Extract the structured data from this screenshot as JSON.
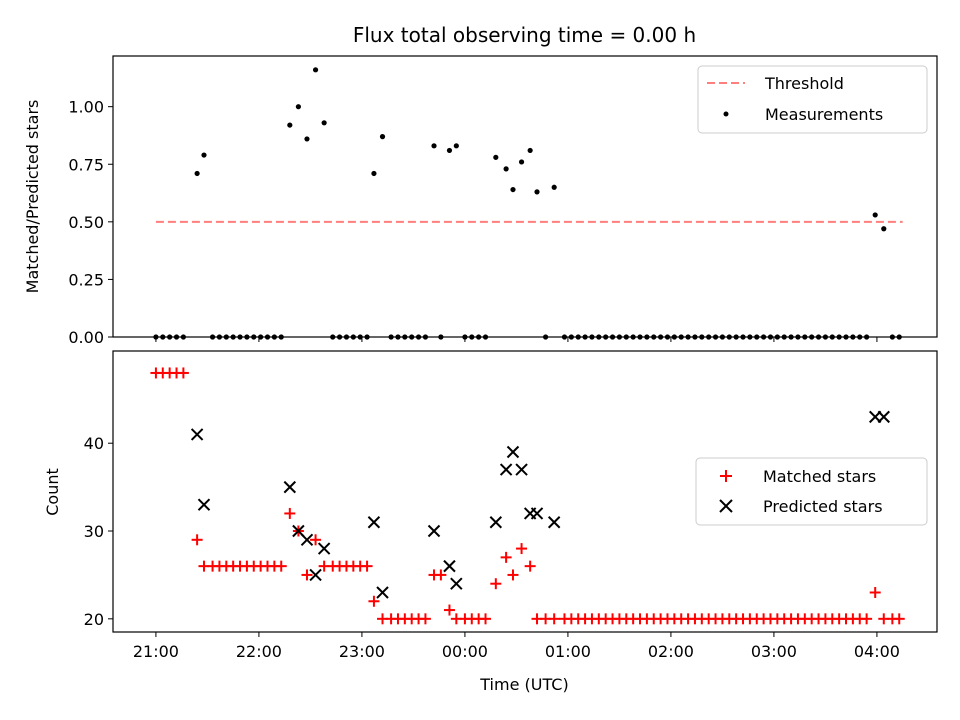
{
  "chart_data": {
    "title": "Flux total observing time = 0.00 h",
    "type": "scatter",
    "xlabel": "Time (UTC)",
    "x_ticks": [
      "21:00",
      "22:00",
      "23:00",
      "00:00",
      "01:00",
      "02:00",
      "03:00",
      "04:00"
    ],
    "panels": [
      {
        "ylabel": "Matched/Predicted stars",
        "ylim": [
          0,
          1.22
        ],
        "y_ticks": [
          "0.00",
          "0.25",
          "0.50",
          "0.75",
          "1.00"
        ],
        "legend_position": "upper right",
        "threshold": {
          "name": "Threshold",
          "value": 0.5,
          "x_range": [
            "21:00",
            "04:15"
          ],
          "color": "#ff7f7f",
          "style": "dashed"
        },
        "series": [
          {
            "name": "Measurements",
            "marker": "dot",
            "color": "#000000",
            "points": [
              [
                "21:00",
                0
              ],
              [
                "21:04",
                0
              ],
              [
                "21:08",
                0
              ],
              [
                "21:12",
                0
              ],
              [
                "21:16",
                0
              ],
              [
                "21:24",
                0.71
              ],
              [
                "21:28",
                0.79
              ],
              [
                "21:33",
                0
              ],
              [
                "21:37",
                0
              ],
              [
                "21:41",
                0
              ],
              [
                "21:45",
                0
              ],
              [
                "21:49",
                0
              ],
              [
                "21:53",
                0
              ],
              [
                "21:57",
                0
              ],
              [
                "22:01",
                0
              ],
              [
                "22:05",
                0
              ],
              [
                "22:09",
                0
              ],
              [
                "22:13",
                0
              ],
              [
                "22:18",
                0.92
              ],
              [
                "22:23",
                1.0
              ],
              [
                "22:28",
                0.86
              ],
              [
                "22:33",
                1.16
              ],
              [
                "22:38",
                0.93
              ],
              [
                "22:43",
                0
              ],
              [
                "22:47",
                0
              ],
              [
                "22:51",
                0
              ],
              [
                "22:55",
                0
              ],
              [
                "22:59",
                0
              ],
              [
                "23:03",
                0
              ],
              [
                "23:07",
                0.71
              ],
              [
                "23:12",
                0.87
              ],
              [
                "23:17",
                0
              ],
              [
                "23:21",
                0
              ],
              [
                "23:25",
                0
              ],
              [
                "23:29",
                0
              ],
              [
                "23:33",
                0
              ],
              [
                "23:37",
                0
              ],
              [
                "23:42",
                0.83
              ],
              [
                "23:46",
                0
              ],
              [
                "23:51",
                0.81
              ],
              [
                "23:55",
                0.83
              ],
              [
                "00:00",
                0
              ],
              [
                "00:04",
                0
              ],
              [
                "00:08",
                0
              ],
              [
                "00:12",
                0
              ],
              [
                "00:18",
                0.78
              ],
              [
                "00:24",
                0.73
              ],
              [
                "00:28",
                0.64
              ],
              [
                "00:33",
                0.76
              ],
              [
                "00:38",
                0.81
              ],
              [
                "00:42",
                0.63
              ],
              [
                "00:47",
                0
              ],
              [
                "00:52",
                0.65
              ],
              [
                "00:58",
                0
              ],
              [
                "01:02",
                0
              ],
              [
                "01:06",
                0
              ],
              [
                "01:10",
                0
              ],
              [
                "01:14",
                0
              ],
              [
                "01:18",
                0
              ],
              [
                "01:22",
                0
              ],
              [
                "01:26",
                0
              ],
              [
                "01:30",
                0
              ],
              [
                "01:34",
                0
              ],
              [
                "01:38",
                0
              ],
              [
                "01:42",
                0
              ],
              [
                "01:46",
                0
              ],
              [
                "01:50",
                0
              ],
              [
                "01:54",
                0
              ],
              [
                "01:58",
                0
              ],
              [
                "02:02",
                0
              ],
              [
                "02:06",
                0
              ],
              [
                "02:10",
                0
              ],
              [
                "02:14",
                0
              ],
              [
                "02:18",
                0
              ],
              [
                "02:22",
                0
              ],
              [
                "02:26",
                0
              ],
              [
                "02:30",
                0
              ],
              [
                "02:34",
                0
              ],
              [
                "02:38",
                0
              ],
              [
                "02:42",
                0
              ],
              [
                "02:46",
                0
              ],
              [
                "02:50",
                0
              ],
              [
                "02:54",
                0
              ],
              [
                "02:58",
                0
              ],
              [
                "03:02",
                0
              ],
              [
                "03:06",
                0
              ],
              [
                "03:10",
                0
              ],
              [
                "03:14",
                0
              ],
              [
                "03:18",
                0
              ],
              [
                "03:22",
                0
              ],
              [
                "03:26",
                0
              ],
              [
                "03:30",
                0
              ],
              [
                "03:34",
                0
              ],
              [
                "03:38",
                0
              ],
              [
                "03:42",
                0
              ],
              [
                "03:46",
                0
              ],
              [
                "03:50",
                0
              ],
              [
                "03:54",
                0
              ],
              [
                "03:59",
                0.53
              ],
              [
                "04:04",
                0.47
              ],
              [
                "04:09",
                0
              ],
              [
                "04:13",
                0
              ]
            ]
          }
        ]
      },
      {
        "ylabel": "Count",
        "ylim": [
          18.5,
          50.5
        ],
        "y_ticks": [
          "20",
          "30",
          "40"
        ],
        "legend_position": "center right",
        "series": [
          {
            "name": "Matched stars",
            "marker": "plus",
            "color": "#ff0000",
            "points": [
              [
                "21:00",
                48
              ],
              [
                "21:04",
                48
              ],
              [
                "21:08",
                48
              ],
              [
                "21:12",
                48
              ],
              [
                "21:16",
                48
              ],
              [
                "21:24",
                29
              ],
              [
                "21:28",
                26
              ],
              [
                "21:33",
                26
              ],
              [
                "21:37",
                26
              ],
              [
                "21:41",
                26
              ],
              [
                "21:45",
                26
              ],
              [
                "21:49",
                26
              ],
              [
                "21:53",
                26
              ],
              [
                "21:57",
                26
              ],
              [
                "22:01",
                26
              ],
              [
                "22:05",
                26
              ],
              [
                "22:09",
                26
              ],
              [
                "22:13",
                26
              ],
              [
                "22:18",
                32
              ],
              [
                "22:23",
                30
              ],
              [
                "22:28",
                25
              ],
              [
                "22:33",
                29
              ],
              [
                "22:38",
                26
              ],
              [
                "22:43",
                26
              ],
              [
                "22:47",
                26
              ],
              [
                "22:51",
                26
              ],
              [
                "22:55",
                26
              ],
              [
                "22:59",
                26
              ],
              [
                "23:03",
                26
              ],
              [
                "23:07",
                22
              ],
              [
                "23:12",
                20
              ],
              [
                "23:17",
                20
              ],
              [
                "23:21",
                20
              ],
              [
                "23:25",
                20
              ],
              [
                "23:29",
                20
              ],
              [
                "23:33",
                20
              ],
              [
                "23:37",
                20
              ],
              [
                "23:42",
                25
              ],
              [
                "23:46",
                25
              ],
              [
                "23:51",
                21
              ],
              [
                "23:55",
                20
              ],
              [
                "00:00",
                20
              ],
              [
                "00:04",
                20
              ],
              [
                "00:08",
                20
              ],
              [
                "00:12",
                20
              ],
              [
                "00:18",
                24
              ],
              [
                "00:24",
                27
              ],
              [
                "00:28",
                25
              ],
              [
                "00:33",
                28
              ],
              [
                "00:38",
                26
              ],
              [
                "00:42",
                20
              ],
              [
                "00:47",
                20
              ],
              [
                "00:52",
                20
              ],
              [
                "00:58",
                20
              ],
              [
                "01:02",
                20
              ],
              [
                "01:06",
                20
              ],
              [
                "01:10",
                20
              ],
              [
                "01:14",
                20
              ],
              [
                "01:18",
                20
              ],
              [
                "01:22",
                20
              ],
              [
                "01:26",
                20
              ],
              [
                "01:30",
                20
              ],
              [
                "01:34",
                20
              ],
              [
                "01:38",
                20
              ],
              [
                "01:42",
                20
              ],
              [
                "01:46",
                20
              ],
              [
                "01:50",
                20
              ],
              [
                "01:54",
                20
              ],
              [
                "01:58",
                20
              ],
              [
                "02:02",
                20
              ],
              [
                "02:06",
                20
              ],
              [
                "02:10",
                20
              ],
              [
                "02:14",
                20
              ],
              [
                "02:18",
                20
              ],
              [
                "02:22",
                20
              ],
              [
                "02:26",
                20
              ],
              [
                "02:30",
                20
              ],
              [
                "02:34",
                20
              ],
              [
                "02:38",
                20
              ],
              [
                "02:42",
                20
              ],
              [
                "02:46",
                20
              ],
              [
                "02:50",
                20
              ],
              [
                "02:54",
                20
              ],
              [
                "02:58",
                20
              ],
              [
                "03:02",
                20
              ],
              [
                "03:06",
                20
              ],
              [
                "03:10",
                20
              ],
              [
                "03:14",
                20
              ],
              [
                "03:18",
                20
              ],
              [
                "03:22",
                20
              ],
              [
                "03:26",
                20
              ],
              [
                "03:30",
                20
              ],
              [
                "03:34",
                20
              ],
              [
                "03:38",
                20
              ],
              [
                "03:42",
                20
              ],
              [
                "03:46",
                20
              ],
              [
                "03:50",
                20
              ],
              [
                "03:54",
                20
              ],
              [
                "03:59",
                23
              ],
              [
                "04:04",
                20
              ],
              [
                "04:09",
                20
              ],
              [
                "04:13",
                20
              ]
            ]
          },
          {
            "name": "Predicted stars",
            "marker": "x",
            "color": "#000000",
            "points": [
              [
                "21:24",
                41
              ],
              [
                "21:28",
                33
              ],
              [
                "22:18",
                35
              ],
              [
                "22:23",
                30
              ],
              [
                "22:28",
                29
              ],
              [
                "22:33",
                25
              ],
              [
                "22:38",
                28
              ],
              [
                "23:07",
                31
              ],
              [
                "23:12",
                23
              ],
              [
                "23:42",
                30
              ],
              [
                "23:51",
                26
              ],
              [
                "23:55",
                24
              ],
              [
                "00:18",
                31
              ],
              [
                "00:24",
                37
              ],
              [
                "00:28",
                39
              ],
              [
                "00:33",
                37
              ],
              [
                "00:38",
                32
              ],
              [
                "00:42",
                32
              ],
              [
                "00:52",
                31
              ],
              [
                "03:59",
                43
              ],
              [
                "04:04",
                43
              ]
            ]
          }
        ]
      }
    ]
  }
}
